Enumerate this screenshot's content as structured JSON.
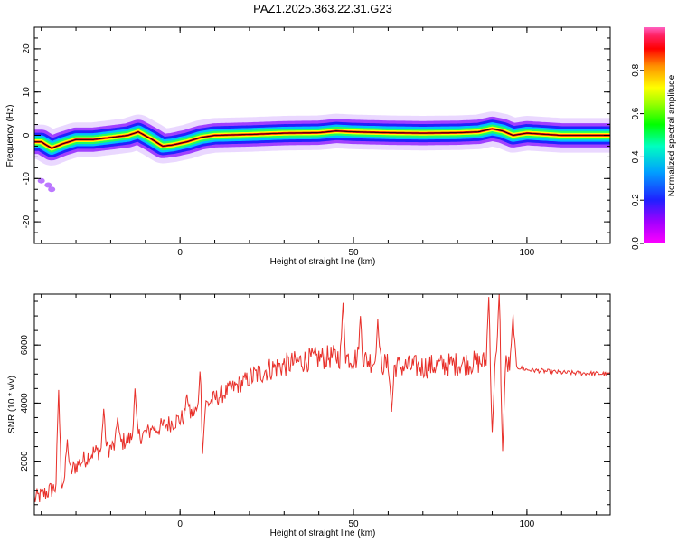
{
  "title": "PAZ1.2025.363.22.31.G23",
  "colors": {
    "snr_line": "#e8302a",
    "colormap": [
      "#ff00ff",
      "#8000ff",
      "#0000ff",
      "#00c0ff",
      "#00ff80",
      "#80ff00",
      "#ffff00",
      "#ff8000",
      "#ff0000",
      "#ff40a0"
    ]
  },
  "chart_data": [
    {
      "type": "heatmap",
      "title": "PAZ1.2025.363.22.31.G23",
      "xlabel": "Height of straight line (km)",
      "ylabel": "Frequency (Hz)",
      "xlim": [
        -42,
        124
      ],
      "ylim": [
        -25,
        25
      ],
      "x_ticks": [
        0,
        50,
        100
      ],
      "y_ticks": [
        -20,
        -10,
        0,
        10,
        20
      ],
      "colorbar": {
        "label": "Normalized spectral amplitude",
        "range": [
          0,
          1
        ],
        "ticks": [
          "0.0",
          "0.2",
          "0.4",
          "0.6",
          "0.8"
        ]
      },
      "ridge": {
        "x": [
          -40,
          -37,
          -34,
          -30,
          -25,
          -20,
          -15,
          -12,
          -8,
          -5,
          -2,
          2,
          6,
          10,
          20,
          30,
          40,
          45,
          50,
          60,
          70,
          80,
          86,
          90,
          93,
          96,
          100,
          110,
          124
        ],
        "freq_hz": [
          -1.5,
          -3.0,
          -2.0,
          -1.0,
          -1.0,
          -0.5,
          0.0,
          0.8,
          -1.0,
          -2.5,
          -2.2,
          -1.5,
          -0.5,
          0.0,
          0.2,
          0.5,
          0.6,
          1.0,
          0.8,
          0.6,
          0.5,
          0.6,
          0.8,
          1.5,
          1.0,
          0.0,
          0.5,
          0.0,
          0.0
        ]
      },
      "outlier": {
        "x": [
          -40,
          -38,
          -37
        ],
        "freq_hz": [
          -10.5,
          -11.5,
          -12.5
        ]
      }
    },
    {
      "type": "line",
      "xlabel": "Height of straight line (km)",
      "ylabel": "SNR (10 * v/v)",
      "xlim": [
        -42,
        124
      ],
      "ylim": [
        150,
        7750
      ],
      "x_ticks": [
        0,
        50,
        100
      ],
      "y_ticks": [
        2000,
        4000,
        6000
      ],
      "baseline": {
        "x": [
          -42,
          -35,
          -30,
          -25,
          -20,
          -15,
          -10,
          -5,
          0,
          5,
          10,
          15,
          20,
          25,
          30,
          35,
          40,
          45,
          50,
          55,
          60,
          65,
          70,
          75,
          80,
          85,
          90,
          95,
          97,
          100,
          110,
          124
        ],
        "y": [
          700,
          1150,
          1850,
          2300,
          2450,
          2750,
          2950,
          3200,
          3450,
          3750,
          4150,
          4500,
          4850,
          5150,
          5300,
          5450,
          5550,
          5600,
          5550,
          5450,
          5300,
          5250,
          5250,
          5300,
          5350,
          5400,
          5400,
          5300,
          5250,
          5150,
          5050,
          5000
        ]
      },
      "spikes": [
        {
          "x": -35,
          "y": 4450
        },
        {
          "x": -32.5,
          "y": 2750
        },
        {
          "x": -22,
          "y": 3800
        },
        {
          "x": -18,
          "y": 3500
        },
        {
          "x": -13,
          "y": 4500
        },
        {
          "x": -8,
          "y": 3200
        },
        {
          "x": 2,
          "y": 4300
        },
        {
          "x": 6,
          "y": 6050
        },
        {
          "x": 6.5,
          "y": 2250
        },
        {
          "x": 47,
          "y": 7450
        },
        {
          "x": 52,
          "y": 7000
        },
        {
          "x": 61,
          "y": 3700
        },
        {
          "x": 57,
          "y": 6900
        },
        {
          "x": 89,
          "y": 7650
        },
        {
          "x": 92,
          "y": 7750
        },
        {
          "x": 93,
          "y": 2350
        },
        {
          "x": 96,
          "y": 7050
        },
        {
          "x": 90,
          "y": 3000
        }
      ]
    }
  ]
}
